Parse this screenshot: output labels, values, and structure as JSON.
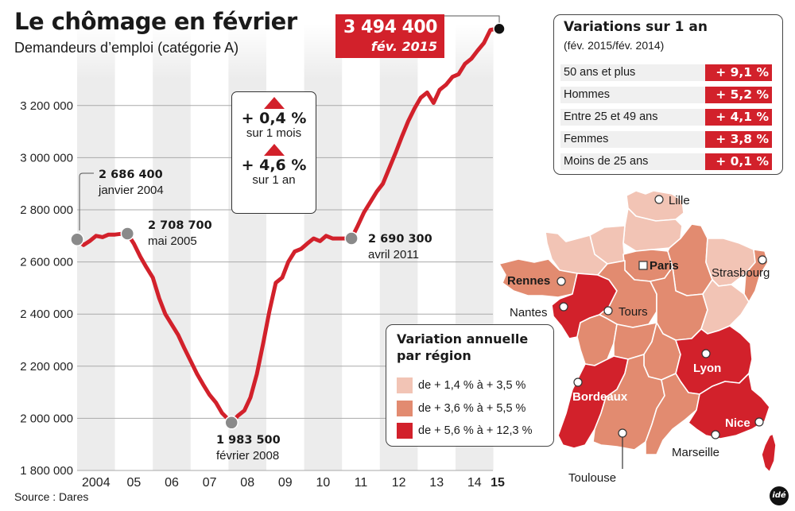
{
  "header": {
    "title": "Le chômage en février",
    "subtitle": "Demandeurs d’emploi (catégorie A)"
  },
  "source": "Source : Dares",
  "latest": {
    "value": "3 494 400",
    "date": "fév. 2015"
  },
  "callout": {
    "monthly": {
      "value": "+ 0,4 %",
      "period": "sur 1 mois"
    },
    "yearly": {
      "value": "+ 4,6 %",
      "period": "sur 1 an"
    }
  },
  "variations": {
    "title": "Variations sur 1 an",
    "subtitle": "(fév. 2015/fév. 2014)",
    "rows": [
      {
        "label": "50 ans et plus",
        "value": "+ 9,1 %"
      },
      {
        "label": "Hommes",
        "value": "+ 5,2 %"
      },
      {
        "label": "Entre 25 et 49 ans",
        "value": "+ 4,1 %"
      },
      {
        "label": "Femmes",
        "value": "+ 3,8 %"
      },
      {
        "label": "Moins de 25 ans",
        "value": "+ 0,1 %"
      }
    ]
  },
  "map_legend": {
    "title_line1": "Variation annuelle",
    "title_line2": "par région",
    "items": [
      {
        "label": "de + 1,4 % à + 3,5 %",
        "color": "#f2c4b5"
      },
      {
        "label": "de + 3,6 % à + 5,5 %",
        "color": "#e28b70"
      },
      {
        "label": "de + 5,6 % à + 12,3 %",
        "color": "#d2212b"
      }
    ]
  },
  "map": {
    "cities": [
      "Lille",
      "Paris",
      "Strasbourg",
      "Rennes",
      "Nantes",
      "Tours",
      "Lyon",
      "Bordeaux",
      "Nice",
      "Marseille",
      "Toulouse"
    ]
  },
  "colors": {
    "accent": "#d2212b",
    "mid": "#e28b70",
    "light": "#f2c4b5",
    "band": "#ececec",
    "grid": "#aaaaaa"
  },
  "logo": "idé",
  "chart_data": {
    "type": "line",
    "title": "Le chômage en février",
    "subtitle": "Demandeurs d’emploi (catégorie A)",
    "xlabel": "",
    "ylabel": "",
    "ylim": [
      1800000,
      3400000
    ],
    "yticks": [
      1800000,
      2000000,
      2200000,
      2400000,
      2600000,
      2800000,
      3000000,
      3200000
    ],
    "ytick_labels": [
      "1 800 000",
      "2 000 000",
      "2 200 000",
      "2 400 000",
      "2 600 000",
      "2 800 000",
      "3 000 000",
      "3 200 000"
    ],
    "xticks": [
      2004,
      2005,
      2006,
      2007,
      2008,
      2009,
      2010,
      2011,
      2012,
      2013,
      2014,
      2015
    ],
    "xtick_labels": [
      "2004",
      "05",
      "06",
      "07",
      "08",
      "09",
      "10",
      "11",
      "12",
      "13",
      "14",
      "15"
    ],
    "grid": true,
    "series": [
      {
        "name": "Demandeurs d'emploi catégorie A",
        "x": [
          2004.0,
          2004.17,
          2004.33,
          2004.5,
          2004.67,
          2004.83,
          2005.0,
          2005.17,
          2005.33,
          2005.5,
          2005.67,
          2005.83,
          2006.0,
          2006.17,
          2006.33,
          2006.5,
          2006.67,
          2006.83,
          2007.0,
          2007.17,
          2007.33,
          2007.5,
          2007.67,
          2007.83,
          2008.08,
          2008.25,
          2008.42,
          2008.58,
          2008.75,
          2008.92,
          2009.08,
          2009.25,
          2009.42,
          2009.58,
          2009.75,
          2009.92,
          2010.08,
          2010.25,
          2010.42,
          2010.58,
          2010.75,
          2011.25,
          2011.42,
          2011.58,
          2011.75,
          2011.92,
          2012.08,
          2012.25,
          2012.42,
          2012.58,
          2012.75,
          2012.92,
          2013.08,
          2013.25,
          2013.42,
          2013.58,
          2013.75,
          2013.92,
          2014.08,
          2014.25,
          2014.42,
          2014.58,
          2014.75,
          2014.92,
          2015.08
        ],
        "y": [
          2686400,
          2665000,
          2680000,
          2700000,
          2695000,
          2705000,
          2705000,
          2708000,
          2708700,
          2670000,
          2620000,
          2580000,
          2540000,
          2460000,
          2400000,
          2360000,
          2320000,
          2270000,
          2220000,
          2170000,
          2130000,
          2090000,
          2060000,
          2020000,
          1983500,
          2010000,
          2030000,
          2080000,
          2170000,
          2290000,
          2410000,
          2520000,
          2540000,
          2600000,
          2640000,
          2650000,
          2670000,
          2690000,
          2680000,
          2700000,
          2690000,
          2690300,
          2740000,
          2790000,
          2830000,
          2870000,
          2900000,
          2960000,
          3020000,
          3080000,
          3140000,
          3190000,
          3230000,
          3250000,
          3210000,
          3260000,
          3280000,
          3310000,
          3320000,
          3360000,
          3380000,
          3410000,
          3440000,
          3490000,
          3494400
        ]
      }
    ],
    "annotations": [
      {
        "label": "2 686 400",
        "date": "janvier 2004",
        "x": 2004.0,
        "y": 2686400
      },
      {
        "label": "2 708 700",
        "date": "mai 2005",
        "x": 2005.33,
        "y": 2708700
      },
      {
        "label": "1 983 500",
        "date": "février 2008",
        "x": 2008.08,
        "y": 1983500
      },
      {
        "label": "2 690 300",
        "date": "avril 2011",
        "x": 2011.25,
        "y": 2690300
      },
      {
        "label": "3 494 400",
        "date": "fév. 2015",
        "x": 2015.08,
        "y": 3494400
      }
    ]
  }
}
